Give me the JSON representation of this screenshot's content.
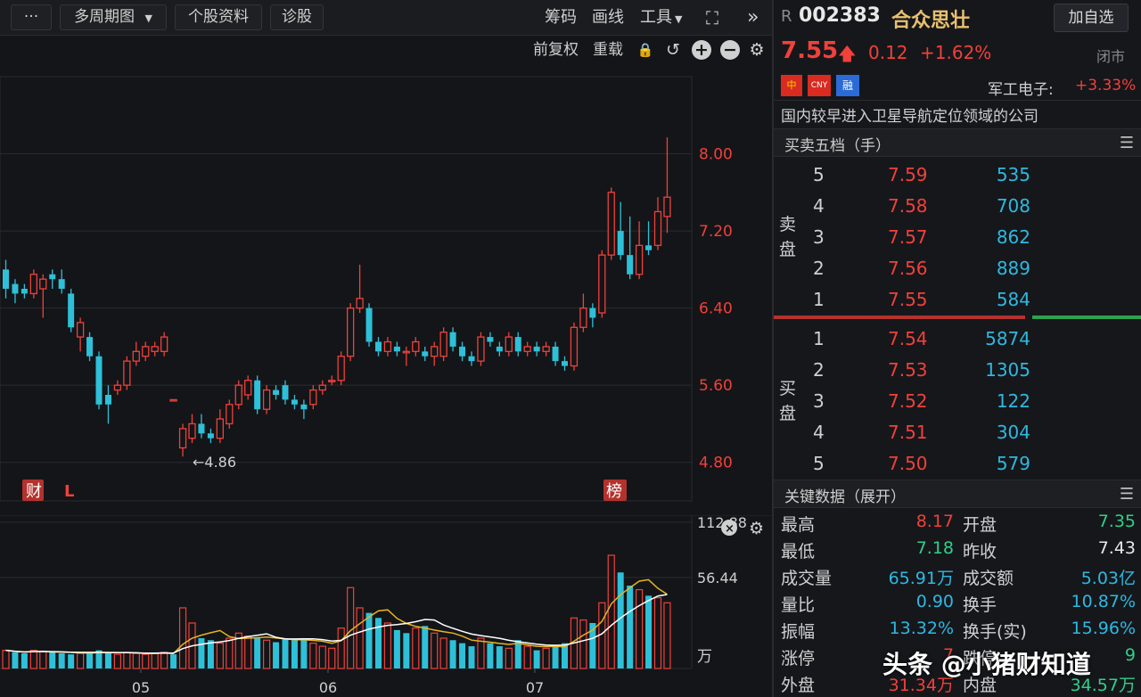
{
  "toolbar": {
    "more_label": "···",
    "multi_period_label": "多周期图",
    "dropdown_arrow": "▼",
    "stock_info_label": "个股资料",
    "diagnosis_label": "诊股",
    "chips_label": "筹码",
    "draw_label": "画线",
    "tools_label": "工具",
    "fullscreen_icon": "⛶",
    "collapse_icon": "»"
  },
  "subbar": {
    "adjust_label": "前复权",
    "overlay_label": "重载",
    "lock_icon": "🔒",
    "undo_icon": "↺",
    "zoom_in_icon": "+",
    "zoom_out_icon": "−",
    "settings_icon": "⚙"
  },
  "markers": {
    "fin_badge": "财",
    "l_badge": "L",
    "list_badge": "榜",
    "low_label": "←4.86"
  },
  "chart_data": [
    {
      "type": "candlestick",
      "title": "",
      "y_ticks": [
        "8.00",
        "7.20",
        "6.40",
        "5.60",
        "4.80"
      ],
      "ylim": [
        4.4,
        8.8
      ],
      "grid": true,
      "candles": [
        {
          "o": 6.8,
          "c": 6.6,
          "h": 6.9,
          "l": 6.5
        },
        {
          "o": 6.65,
          "c": 6.55,
          "h": 6.7,
          "l": 6.45
        },
        {
          "o": 6.6,
          "c": 6.55,
          "h": 6.65,
          "l": 6.5
        },
        {
          "o": 6.55,
          "c": 6.75,
          "h": 6.8,
          "l": 6.5
        },
        {
          "o": 6.6,
          "c": 6.7,
          "h": 6.75,
          "l": 6.3
        },
        {
          "o": 6.75,
          "c": 6.7,
          "h": 6.8,
          "l": 6.6
        },
        {
          "o": 6.7,
          "c": 6.6,
          "h": 6.8,
          "l": 6.55
        },
        {
          "o": 6.55,
          "c": 6.2,
          "h": 6.6,
          "l": 6.15
        },
        {
          "o": 6.1,
          "c": 6.25,
          "h": 6.3,
          "l": 5.95
        },
        {
          "o": 6.1,
          "c": 5.9,
          "h": 6.15,
          "l": 5.85
        },
        {
          "o": 5.9,
          "c": 5.4,
          "h": 5.95,
          "l": 5.35
        },
        {
          "o": 5.5,
          "c": 5.4,
          "h": 5.6,
          "l": 5.2
        },
        {
          "o": 5.55,
          "c": 5.6,
          "h": 5.65,
          "l": 5.5
        },
        {
          "o": 5.6,
          "c": 5.85,
          "h": 5.9,
          "l": 5.55
        },
        {
          "o": 5.85,
          "c": 5.95,
          "h": 6.05,
          "l": 5.8
        },
        {
          "o": 5.9,
          "c": 6.0,
          "h": 6.05,
          "l": 5.85
        },
        {
          "o": 5.95,
          "c": 6.0,
          "h": 6.05,
          "l": 5.9
        },
        {
          "o": 5.95,
          "c": 6.1,
          "h": 6.15,
          "l": 5.9
        },
        {
          "o": 5.45,
          "c": 5.45,
          "h": 5.45,
          "l": 5.45
        },
        {
          "o": 4.95,
          "c": 5.15,
          "h": 5.2,
          "l": 4.86
        },
        {
          "o": 5.05,
          "c": 5.2,
          "h": 5.3,
          "l": 5.0
        },
        {
          "o": 5.2,
          "c": 5.1,
          "h": 5.3,
          "l": 5.05
        },
        {
          "o": 5.1,
          "c": 5.05,
          "h": 5.15,
          "l": 5.0
        },
        {
          "o": 5.05,
          "c": 5.25,
          "h": 5.35,
          "l": 5.0
        },
        {
          "o": 5.2,
          "c": 5.4,
          "h": 5.45,
          "l": 5.15
        },
        {
          "o": 5.4,
          "c": 5.6,
          "h": 5.65,
          "l": 5.35
        },
        {
          "o": 5.5,
          "c": 5.65,
          "h": 5.7,
          "l": 5.45
        },
        {
          "o": 5.65,
          "c": 5.35,
          "h": 5.7,
          "l": 5.3
        },
        {
          "o": 5.35,
          "c": 5.55,
          "h": 5.6,
          "l": 5.3
        },
        {
          "o": 5.55,
          "c": 5.5,
          "h": 5.6,
          "l": 5.45
        },
        {
          "o": 5.6,
          "c": 5.45,
          "h": 5.65,
          "l": 5.4
        },
        {
          "o": 5.45,
          "c": 5.4,
          "h": 5.5,
          "l": 5.35
        },
        {
          "o": 5.4,
          "c": 5.35,
          "h": 5.45,
          "l": 5.25
        },
        {
          "o": 5.4,
          "c": 5.55,
          "h": 5.6,
          "l": 5.35
        },
        {
          "o": 5.55,
          "c": 5.6,
          "h": 5.65,
          "l": 5.5
        },
        {
          "o": 5.65,
          "c": 5.65,
          "h": 5.7,
          "l": 5.6
        },
        {
          "o": 5.65,
          "c": 5.9,
          "h": 5.95,
          "l": 5.6
        },
        {
          "o": 5.9,
          "c": 6.4,
          "h": 6.45,
          "l": 5.85
        },
        {
          "o": 6.4,
          "c": 6.5,
          "h": 6.85,
          "l": 6.35
        },
        {
          "o": 6.4,
          "c": 6.05,
          "h": 6.45,
          "l": 6.0
        },
        {
          "o": 6.05,
          "c": 5.95,
          "h": 6.1,
          "l": 5.9
        },
        {
          "o": 5.95,
          "c": 6.05,
          "h": 6.1,
          "l": 5.9
        },
        {
          "o": 6.0,
          "c": 5.95,
          "h": 6.05,
          "l": 5.9
        },
        {
          "o": 5.95,
          "c": 5.95,
          "h": 6.0,
          "l": 5.8
        },
        {
          "o": 5.95,
          "c": 6.05,
          "h": 6.1,
          "l": 5.9
        },
        {
          "o": 5.95,
          "c": 5.9,
          "h": 6.0,
          "l": 5.85
        },
        {
          "o": 5.9,
          "c": 6.0,
          "h": 6.05,
          "l": 5.8
        },
        {
          "o": 5.9,
          "c": 6.15,
          "h": 6.2,
          "l": 5.85
        },
        {
          "o": 6.15,
          "c": 6.0,
          "h": 6.2,
          "l": 5.95
        },
        {
          "o": 6.0,
          "c": 5.9,
          "h": 6.05,
          "l": 5.85
        },
        {
          "o": 5.9,
          "c": 5.85,
          "h": 5.95,
          "l": 5.8
        },
        {
          "o": 5.85,
          "c": 6.1,
          "h": 6.15,
          "l": 5.8
        },
        {
          "o": 6.1,
          "c": 6.05,
          "h": 6.15,
          "l": 6.0
        },
        {
          "o": 6.0,
          "c": 5.95,
          "h": 6.05,
          "l": 5.9
        },
        {
          "o": 5.95,
          "c": 6.1,
          "h": 6.15,
          "l": 5.9
        },
        {
          "o": 6.1,
          "c": 5.95,
          "h": 6.15,
          "l": 5.9
        },
        {
          "o": 5.95,
          "c": 6.0,
          "h": 6.05,
          "l": 5.9
        },
        {
          "o": 6.0,
          "c": 5.95,
          "h": 6.05,
          "l": 5.9
        },
        {
          "o": 5.95,
          "c": 6.0,
          "h": 6.05,
          "l": 5.9
        },
        {
          "o": 6.0,
          "c": 5.85,
          "h": 6.05,
          "l": 5.8
        },
        {
          "o": 5.85,
          "c": 5.8,
          "h": 5.9,
          "l": 5.75
        },
        {
          "o": 5.8,
          "c": 6.2,
          "h": 6.25,
          "l": 5.75
        },
        {
          "o": 6.2,
          "c": 6.4,
          "h": 6.55,
          "l": 6.15
        },
        {
          "o": 6.4,
          "c": 6.3,
          "h": 6.45,
          "l": 6.2
        },
        {
          "o": 6.35,
          "c": 6.95,
          "h": 7.0,
          "l": 6.3
        },
        {
          "o": 6.95,
          "c": 7.6,
          "h": 7.65,
          "l": 6.9
        },
        {
          "o": 7.2,
          "c": 6.95,
          "h": 7.5,
          "l": 6.9
        },
        {
          "o": 6.95,
          "c": 6.75,
          "h": 7.35,
          "l": 6.7
        },
        {
          "o": 6.75,
          "c": 7.05,
          "h": 7.3,
          "l": 6.7
        },
        {
          "o": 7.05,
          "c": 7.0,
          "h": 7.3,
          "l": 6.95
        },
        {
          "o": 7.05,
          "c": 7.4,
          "h": 7.55,
          "l": 7.0
        },
        {
          "o": 7.35,
          "c": 7.55,
          "h": 8.17,
          "l": 7.18
        }
      ]
    },
    {
      "type": "bar",
      "title": "",
      "y_ticks": [
        "112.88",
        "56.44"
      ],
      "unit_label": "万",
      "x_labels": [
        "05",
        "06",
        "07"
      ],
      "ylim": [
        0,
        120
      ],
      "volumes": [
        18,
        16,
        15,
        18,
        17,
        16,
        15,
        14,
        15,
        16,
        18,
        15,
        14,
        16,
        15,
        14,
        15,
        16,
        14,
        60,
        45,
        30,
        28,
        25,
        30,
        35,
        32,
        30,
        28,
        26,
        30,
        28,
        30,
        25,
        22,
        20,
        40,
        80,
        60,
        55,
        50,
        45,
        38,
        35,
        40,
        42,
        35,
        30,
        28,
        25,
        22,
        30,
        25,
        22,
        20,
        28,
        22,
        18,
        20,
        22,
        25,
        50,
        48,
        45,
        65,
        112,
        95,
        82,
        78,
        72,
        70,
        65
      ],
      "up_flags": [
        1,
        0,
        0,
        1,
        1,
        0,
        0,
        0,
        1,
        0,
        0,
        0,
        1,
        1,
        1,
        1,
        1,
        1,
        0,
        1,
        1,
        0,
        0,
        1,
        1,
        1,
        1,
        0,
        1,
        0,
        0,
        0,
        0,
        1,
        1,
        1,
        1,
        1,
        1,
        0,
        0,
        1,
        0,
        0,
        1,
        0,
        1,
        1,
        0,
        0,
        0,
        1,
        0,
        0,
        1,
        0,
        1,
        0,
        1,
        0,
        0,
        1,
        1,
        0,
        1,
        1,
        0,
        0,
        1,
        0,
        1,
        1
      ]
    }
  ],
  "stock": {
    "prefix": "R",
    "code": "002383",
    "name": "合众思壮",
    "add_watch_label": "加自选",
    "price": "7.55",
    "arrow": "🡅",
    "change": "0.12",
    "change_pct": "+1.62%",
    "status": "闭市",
    "tag_cn": "中",
    "tag_cny": "CNY",
    "tag_margin": "融",
    "sector_label": "军工电子:",
    "sector_pct": "+3.33%",
    "description": "国内较早进入卫星导航定位领域的公司"
  },
  "orderbook": {
    "title": "买卖五档（手）",
    "sell_label": "卖盘",
    "buy_label": "买盘",
    "asks": [
      {
        "level": "5",
        "price": "7.59",
        "vol": "535"
      },
      {
        "level": "4",
        "price": "7.58",
        "vol": "708"
      },
      {
        "level": "3",
        "price": "7.57",
        "vol": "862"
      },
      {
        "level": "2",
        "price": "7.56",
        "vol": "889"
      },
      {
        "level": "1",
        "price": "7.55",
        "vol": "584"
      }
    ],
    "bids": [
      {
        "level": "1",
        "price": "7.54",
        "vol": "5874"
      },
      {
        "level": "2",
        "price": "7.53",
        "vol": "1305"
      },
      {
        "level": "3",
        "price": "7.52",
        "vol": "122"
      },
      {
        "level": "4",
        "price": "7.51",
        "vol": "304"
      },
      {
        "level": "5",
        "price": "7.50",
        "vol": "579"
      }
    ],
    "buy_ratio": 0.69
  },
  "keydata": {
    "title": "关键数据（展开）",
    "rows": [
      {
        "l1": "最高",
        "v1": "8.17",
        "c1": "red",
        "l2": "开盘",
        "v2": "7.35",
        "c2": "green"
      },
      {
        "l1": "最低",
        "v1": "7.18",
        "c1": "green",
        "l2": "昨收",
        "v2": "7.43",
        "c2": "white"
      },
      {
        "l1": "成交量",
        "v1": "65.91万",
        "c1": "cyan",
        "l2": "成交额",
        "v2": "5.03亿",
        "c2": "cyan"
      },
      {
        "l1": "量比",
        "v1": "0.90",
        "c1": "cyan",
        "l2": "换手",
        "v2": "10.87%",
        "c2": "cyan"
      },
      {
        "l1": "振幅",
        "v1": "13.32%",
        "c1": "cyan",
        "l2": "换手(实)",
        "v2": "15.96%",
        "c2": "cyan"
      },
      {
        "l1": "涨停",
        "v1": "7",
        "c1": "red",
        "l2": "跌停",
        "v2": "9",
        "c2": "green"
      },
      {
        "l1": "外盘",
        "v1": "31.34万",
        "c1": "red",
        "l2": "内盘",
        "v2": "34.57万",
        "c2": "green"
      }
    ]
  },
  "watermark": "头条 @小猪财知道",
  "colors": {
    "up": "#f0413a",
    "down": "#2ec0d8",
    "ma1": "#ffffff",
    "ma2": "#e6b422"
  }
}
